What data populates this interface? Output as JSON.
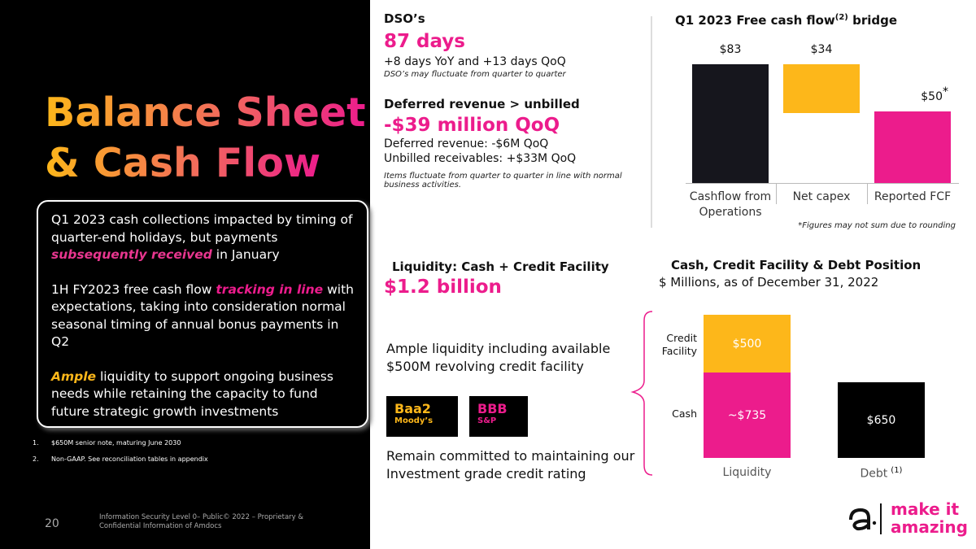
{
  "left_panel": {
    "title_lines": [
      "Balance Sheet",
      "& Cash Flow"
    ],
    "paragraphs": [
      [
        {
          "text": "Q1 2023 cash collections impacted by timing of quarter-end holidays, but payments "
        },
        {
          "text": "subsequently received",
          "color": "#e8368f"
        },
        {
          "text": " in January"
        }
      ],
      [
        {
          "text": "1H FY2023 free cash flow "
        },
        {
          "text": "tracking in line",
          "color": "#ec1c8c"
        },
        {
          "text": " with expectations, taking into consideration normal seasonal timing of annual bonus payments in Q2"
        }
      ],
      [
        {
          "text": "Ample",
          "color": "#fdb71a"
        },
        {
          "text": " liquidity to support ongoing business needs while retaining the capacity to fund future strategic growth investments"
        }
      ]
    ],
    "footnotes": [
      {
        "number": "1.",
        "text": "$650M senior note, maturing June 2030"
      },
      {
        "number": "2.",
        "text": "Non-GAAP. See reconciliation tables in appendix"
      }
    ]
  },
  "dso": {
    "heading": "DSO’s",
    "value": "87 days",
    "detail": "+8 days YoY and +13 days QoQ",
    "note": "DSO’s may fluctuate from quarter to quarter"
  },
  "deferred": {
    "heading": "Deferred revenue > unbilled",
    "value": "-$39 million QoQ",
    "lines": [
      "Deferred revenue: -$6M QoQ",
      "Unbilled receivables: +$33M QoQ"
    ],
    "note": "Items fluctuate from quarter to quarter in line with normal business activities."
  },
  "liquidity": {
    "heading": "Liquidity: Cash + Credit Facility",
    "value": "$1.2 billion",
    "text": "Ample liquidity including available $500M revolving credit facility",
    "ratings": [
      {
        "rating": "Baa2",
        "agency": "Moody’s",
        "color": "#fdb71a"
      },
      {
        "rating": "BBB",
        "agency": "S&P",
        "color": "#ec1c8c"
      }
    ],
    "commitment": "Remain committed to maintaining our Investment grade credit rating"
  },
  "footer": {
    "page": "20",
    "info": "Information Security Level 0– Public© 2022 – Proprietary & Confidential Information of Amdocs",
    "logo_lines": [
      "make it",
      "amazing"
    ]
  },
  "chart_data": [
    {
      "type": "waterfall",
      "title": "Q1 2023 Free cash flow",
      "title_superscript": "(2)",
      "title_suffix": " bridge",
      "categories": [
        "Cashflow from Operations",
        "Net capex",
        "Reported FCF"
      ],
      "steps": [
        "total",
        "decrease",
        "total"
      ],
      "values": [
        83,
        34,
        50
      ],
      "value_labels": [
        "$83",
        "$34",
        "$50"
      ],
      "colors": [
        "#16161d",
        "#fdb71a",
        "#ec1c8c"
      ],
      "annotation": "*",
      "note": "*Figures may not sum due to rounding"
    },
    {
      "type": "stacked_bar",
      "title": "Cash, Credit Facility & Debt Position",
      "subtitle": "$ Millions, as of December 31, 2022",
      "categories": [
        "Liquidity",
        "Debt"
      ],
      "category_notes": [
        null,
        "(1)"
      ],
      "series": [
        {
          "name": "Cash",
          "color": "#ec1c8c",
          "values": [
            735,
            null
          ],
          "value_labels": [
            "~$735",
            null
          ]
        },
        {
          "name": "Credit Facility",
          "color": "#fdb71a",
          "values": [
            500,
            null
          ],
          "value_labels": [
            "$500",
            null
          ]
        },
        {
          "color": "#000000",
          "values": [
            null,
            650
          ],
          "value_labels": [
            null,
            "$650"
          ]
        }
      ]
    }
  ]
}
